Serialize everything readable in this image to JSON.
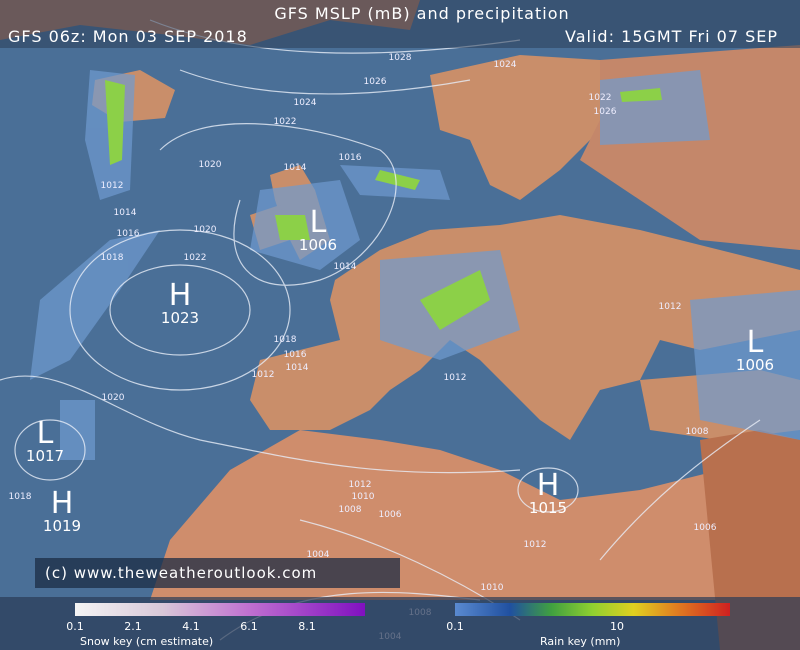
{
  "header": {
    "title": "GFS MSLP (mB) and precipitation",
    "run": "GFS 06z: Mon 03 SEP 2018",
    "valid": "Valid: 15GMT Fri 07 SEP"
  },
  "credit": "(c) www.theweatheroutlook.com",
  "pressure_centers": [
    {
      "type": "H",
      "value": 1023
    },
    {
      "type": "L",
      "value": 1006
    },
    {
      "type": "L",
      "value": 1017
    },
    {
      "type": "H",
      "value": 1019
    },
    {
      "type": "H",
      "value": 1015
    },
    {
      "type": "L",
      "value": 1006
    }
  ],
  "isobar_labels": [
    1028,
    1026,
    1024,
    1022,
    1020,
    1016,
    1014,
    1012,
    1014,
    1016,
    1018,
    1020,
    1022,
    1014,
    1018,
    1016,
    1014,
    1012,
    1020,
    1012,
    1008,
    1012,
    1010,
    1008,
    1006,
    1018,
    1004,
    1012,
    1010,
    1008,
    1004,
    1006,
    1012,
    1022,
    1026,
    1024
  ],
  "snow_key": {
    "labels": [
      0.1,
      2.1,
      4.1,
      6.1,
      8.1
    ],
    "caption": "Snow key (cm estimate)"
  },
  "rain_key": {
    "labels": [
      0.1,
      10
    ],
    "caption": "Rain key (mm)"
  }
}
